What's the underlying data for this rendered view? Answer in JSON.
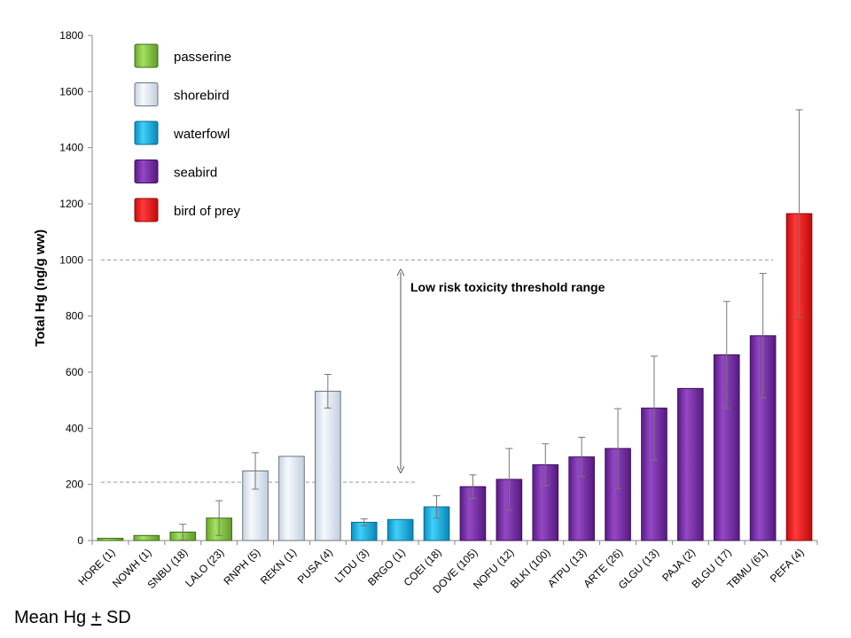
{
  "chart_data": {
    "type": "bar",
    "ylabel": "Total Hg (ng/g ww)",
    "ylim": [
      0,
      1800
    ],
    "yticks": [
      0,
      200,
      400,
      600,
      800,
      1000,
      1200,
      1400,
      1600,
      1800
    ],
    "categories": [
      "HORE (1)",
      "NOWH (1)",
      "SNBU (18)",
      "LALO (23)",
      "RNPH (5)",
      "REKN (1)",
      "PUSA (4)",
      "LTDU (3)",
      "BRGO (1)",
      "COEI (18)",
      "DOVE (105)",
      "NOFU (12)",
      "BLKI (100)",
      "ATPU (13)",
      "ARTE (26)",
      "GLGU (13)",
      "PAJA (2)",
      "BLGU (17)",
      "TBMU (61)",
      "PEFA (4)"
    ],
    "values": [
      8,
      18,
      30,
      80,
      248,
      300,
      532,
      65,
      75,
      120,
      192,
      218,
      270,
      298,
      328,
      472,
      542,
      662,
      730,
      1165
    ],
    "sd": [
      null,
      null,
      28,
      62,
      65,
      null,
      60,
      12,
      null,
      40,
      42,
      110,
      75,
      70,
      142,
      185,
      null,
      190,
      222,
      370
    ],
    "groups": [
      "passerine",
      "passerine",
      "passerine",
      "passerine",
      "shorebird",
      "shorebird",
      "shorebird",
      "waterfowl",
      "waterfowl",
      "waterfowl",
      "seabird",
      "seabird",
      "seabird",
      "seabird",
      "seabird",
      "seabird",
      "seabird",
      "seabird",
      "seabird",
      "bird of prey"
    ],
    "legend": [
      {
        "name": "passerine",
        "color": "#8cd04a"
      },
      {
        "name": "shorebird",
        "color": "#e8eff8"
      },
      {
        "name": "waterfowl",
        "color": "#22b4e6"
      },
      {
        "name": "seabird",
        "color": "#7a2ea8"
      },
      {
        "name": "bird of prey",
        "color": "#ee1c1c"
      }
    ],
    "legend_position": "top-left",
    "grid": false,
    "threshold_range": {
      "low": 208,
      "high": 1000,
      "label": "Low risk toxicity threshold range"
    }
  },
  "footer": {
    "prefix": "Mean Hg ",
    "symbol": "+",
    "suffix": " SD"
  }
}
